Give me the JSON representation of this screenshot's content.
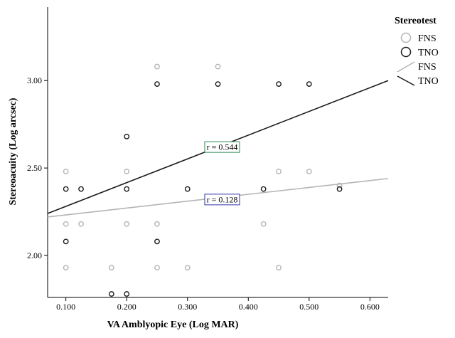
{
  "chart_data": {
    "type": "scatter",
    "xlabel": "VA Amblyopic Eye (Log MAR)",
    "ylabel": "Stereoacuity (Log arcsec)",
    "xlim": [
      0.07,
      0.63
    ],
    "ylim": [
      1.76,
      3.42
    ],
    "x_ticks": [
      0.1,
      0.2,
      0.3,
      0.4,
      0.5,
      0.6
    ],
    "x_tick_labels": [
      "0.100",
      "0.200",
      "0.300",
      "0.400",
      "0.500",
      "0.600"
    ],
    "y_ticks": [
      2.0,
      2.5,
      3.0
    ],
    "y_tick_labels": [
      "2.00",
      "2.50",
      "3.00"
    ],
    "legend": {
      "title": "Stereotest",
      "position": "right",
      "entries": [
        {
          "label": "FNS",
          "kind": "marker",
          "series": "FNS"
        },
        {
          "label": "TNO",
          "kind": "marker",
          "series": "TNO"
        },
        {
          "label": "FNS",
          "kind": "line",
          "series": "FNS"
        },
        {
          "label": "TNO",
          "kind": "line",
          "series": "TNO"
        }
      ]
    },
    "series": [
      {
        "name": "FNS",
        "color": "#b4b4b4",
        "points": [
          {
            "x": 0.1,
            "y": 2.48
          },
          {
            "x": 0.1,
            "y": 2.18
          },
          {
            "x": 0.1,
            "y": 1.93
          },
          {
            "x": 0.125,
            "y": 2.18
          },
          {
            "x": 0.175,
            "y": 1.93
          },
          {
            "x": 0.2,
            "y": 2.48
          },
          {
            "x": 0.2,
            "y": 2.18
          },
          {
            "x": 0.25,
            "y": 3.08
          },
          {
            "x": 0.25,
            "y": 2.18
          },
          {
            "x": 0.25,
            "y": 1.93
          },
          {
            "x": 0.3,
            "y": 1.93
          },
          {
            "x": 0.35,
            "y": 3.08
          },
          {
            "x": 0.425,
            "y": 2.18
          },
          {
            "x": 0.45,
            "y": 2.48
          },
          {
            "x": 0.45,
            "y": 1.93
          },
          {
            "x": 0.5,
            "y": 2.48
          },
          {
            "x": 0.55,
            "y": 2.4
          }
        ],
        "fit_line": {
          "x": [
            0.07,
            0.63
          ],
          "y": [
            2.22,
            2.44
          ]
        }
      },
      {
        "name": "TNO",
        "color": "#1a1a1a",
        "points": [
          {
            "x": 0.1,
            "y": 2.38
          },
          {
            "x": 0.1,
            "y": 2.08
          },
          {
            "x": 0.125,
            "y": 2.38
          },
          {
            "x": 0.175,
            "y": 1.78
          },
          {
            "x": 0.2,
            "y": 2.68
          },
          {
            "x": 0.2,
            "y": 2.38
          },
          {
            "x": 0.2,
            "y": 1.78
          },
          {
            "x": 0.25,
            "y": 2.98
          },
          {
            "x": 0.25,
            "y": 2.08
          },
          {
            "x": 0.3,
            "y": 2.38
          },
          {
            "x": 0.35,
            "y": 2.98
          },
          {
            "x": 0.425,
            "y": 2.38
          },
          {
            "x": 0.45,
            "y": 2.98
          },
          {
            "x": 0.5,
            "y": 2.98
          },
          {
            "x": 0.55,
            "y": 2.38
          }
        ],
        "fit_line": {
          "x": [
            0.07,
            0.63
          ],
          "y": [
            2.24,
            3.0
          ]
        }
      }
    ],
    "annotations": [
      {
        "text": "r = 0.544",
        "x": 0.357,
        "y": 2.62,
        "border_color": "#2e8b57"
      },
      {
        "text": "r = 0.128",
        "x": 0.357,
        "y": 2.32,
        "border_color": "#3333aa"
      }
    ]
  }
}
